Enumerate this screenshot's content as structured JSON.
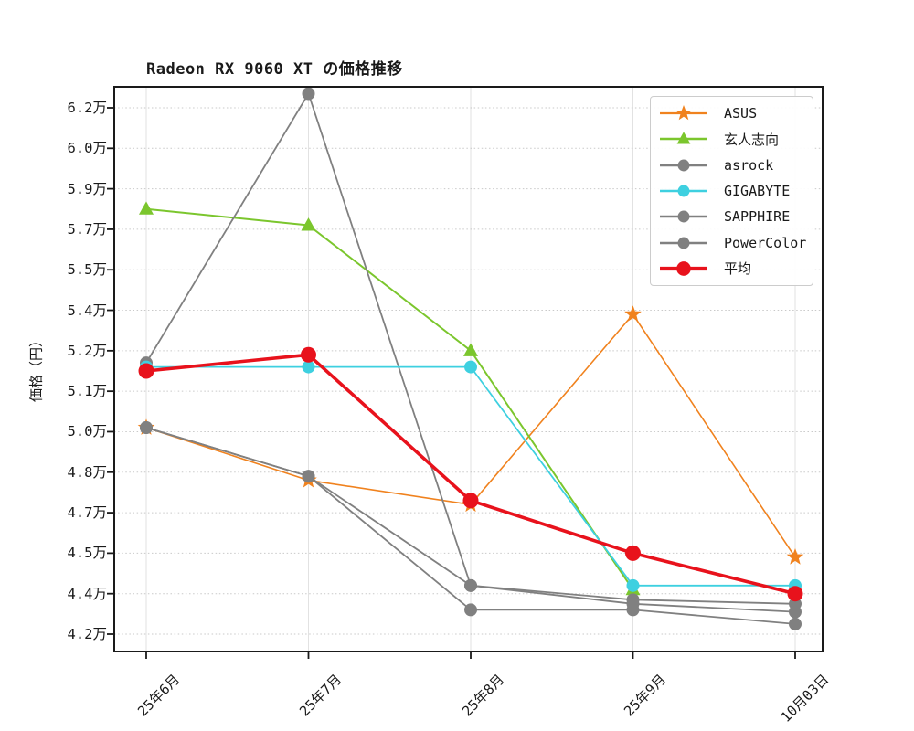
{
  "chart_data": {
    "type": "line",
    "title": "Radeon RX 9060 XT の価格推移",
    "ylabel": "価格（円）",
    "xlabel": "",
    "categories": [
      "25年6月",
      "25年7月",
      "25年8月",
      "25年9月",
      "10月03日"
    ],
    "yticks": [
      {
        "label": "4.2万",
        "value": 4.2
      },
      {
        "label": "4.4万",
        "value": 4.4
      },
      {
        "label": "4.5万",
        "value": 4.5
      },
      {
        "label": "4.7万",
        "value": 4.7
      },
      {
        "label": "4.8万",
        "value": 4.8
      },
      {
        "label": "5.0万",
        "value": 5.0
      },
      {
        "label": "5.1万",
        "value": 5.1
      },
      {
        "label": "5.2万",
        "value": 5.2
      },
      {
        "label": "5.4万",
        "value": 5.4
      },
      {
        "label": "5.5万",
        "value": 5.5
      },
      {
        "label": "5.7万",
        "value": 5.7
      },
      {
        "label": "5.9万",
        "value": 5.9
      },
      {
        "label": "6.0万",
        "value": 6.0
      },
      {
        "label": "6.2万",
        "value": 6.2
      }
    ],
    "y_unit": "万円",
    "grid": true,
    "legend_position": "upper right",
    "series": [
      {
        "name": "ASUS",
        "color": "#f0821e",
        "marker": "star",
        "linewidth": 1.6,
        "markersize": 8.5,
        "values": [
          5.01,
          4.78,
          4.72,
          5.38,
          4.49
        ]
      },
      {
        "name": "玄人志向",
        "color": "#7bc62d",
        "marker": "triangle",
        "linewidth": 2.0,
        "markersize": 8.0,
        "values": [
          5.8,
          5.72,
          5.2,
          4.41,
          null
        ]
      },
      {
        "name": "asrock",
        "color": "#808080",
        "marker": "circle",
        "linewidth": 1.8,
        "markersize": 7.0,
        "values": [
          5.17,
          6.27,
          4.42,
          4.37,
          4.35
        ]
      },
      {
        "name": "GIGABYTE",
        "color": "#3ed0e0",
        "marker": "circle",
        "linewidth": 1.8,
        "markersize": 7.0,
        "values": [
          5.16,
          5.16,
          5.16,
          4.42,
          4.42
        ]
      },
      {
        "name": "SAPPHIRE",
        "color": "#808080",
        "marker": "circle",
        "linewidth": 1.8,
        "markersize": 7.0,
        "values": [
          5.01,
          4.79,
          4.42,
          4.35,
          4.31
        ]
      },
      {
        "name": "PowerColor",
        "color": "#808080",
        "marker": "circle",
        "linewidth": 1.8,
        "markersize": 7.0,
        "values": [
          5.01,
          4.79,
          4.32,
          4.32,
          4.25
        ]
      },
      {
        "name": "平均",
        "color": "#e8121c",
        "marker": "circle",
        "linewidth": 3.6,
        "markersize": 8.5,
        "values": [
          5.15,
          5.19,
          4.73,
          4.5,
          4.4
        ]
      }
    ]
  }
}
